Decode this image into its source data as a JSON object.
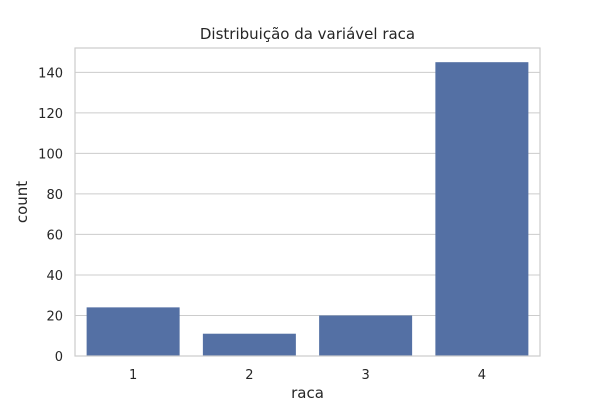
{
  "chart_data": {
    "type": "bar",
    "title": "Distribuição da variável raca",
    "xlabel": "raca",
    "ylabel": "count",
    "categories": [
      "1",
      "2",
      "3",
      "4"
    ],
    "values": [
      24,
      11,
      20,
      145
    ],
    "ylim": [
      0,
      152
    ],
    "yticks": [
      0,
      20,
      40,
      60,
      80,
      100,
      120,
      140
    ],
    "grid": "horizontal",
    "bar_color": "#5470a4",
    "grid_color": "#cccccc",
    "frame_color": "#cccccc"
  }
}
